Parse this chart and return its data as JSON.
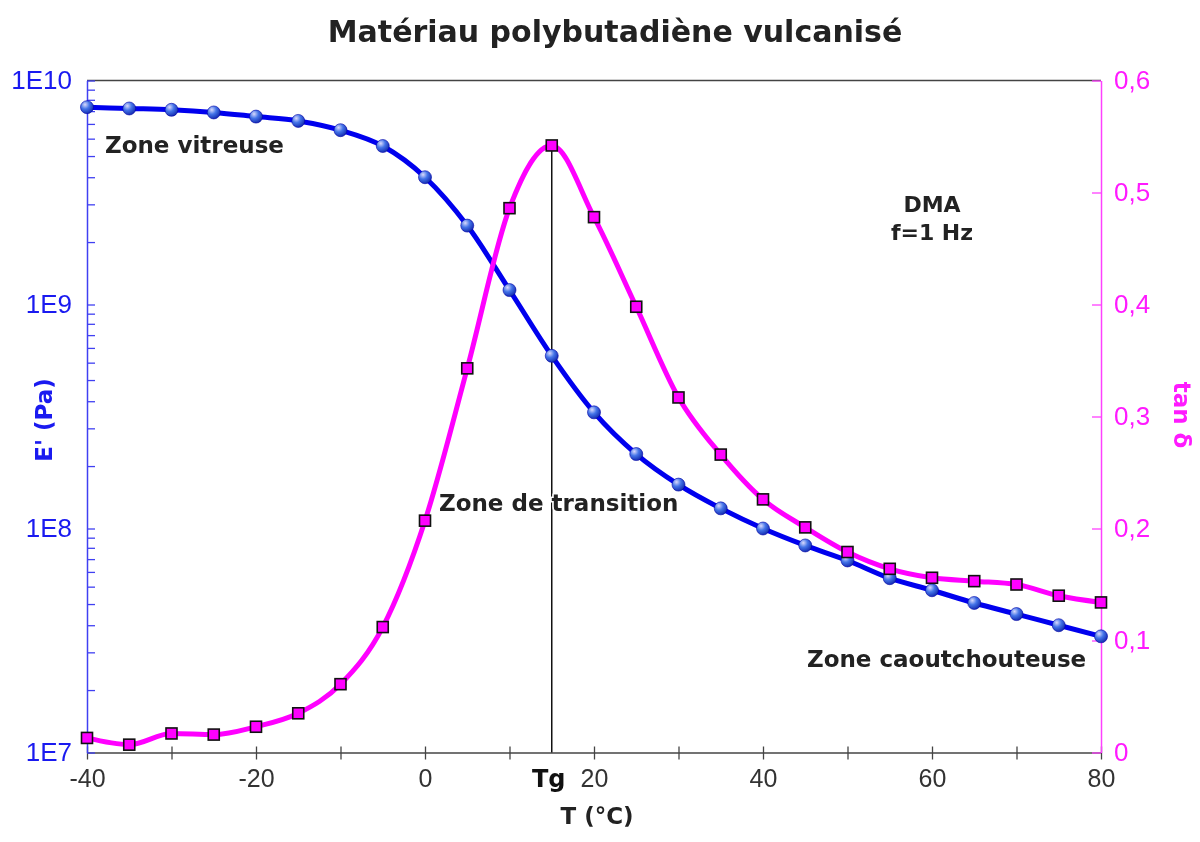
{
  "chart_data": {
    "type": "line",
    "title": "Matériau polybutadiène vulcanisé",
    "xlabel": "T (°C)",
    "ylabel": "E' (Pa)",
    "y2label": "tan δ",
    "x": [
      -40,
      -35,
      -30,
      -25,
      -20,
      -15,
      -10,
      -5,
      0,
      5,
      10,
      15,
      20,
      25,
      30,
      35,
      40,
      45,
      50,
      55,
      60,
      65,
      70,
      75,
      80
    ],
    "xlim": [
      -40,
      80
    ],
    "xticks": [
      -40,
      {
        "value": -30,
        "label": null
      },
      -20,
      {
        "value": -10,
        "label": null
      },
      0,
      {
        "value": 10,
        "label": null
      },
      20,
      {
        "value": 30,
        "label": null
      },
      40,
      {
        "value": 50,
        "label": null
      },
      60,
      {
        "value": 70,
        "label": null
      },
      80
    ],
    "ylim": [
      10000000,
      10000000000
    ],
    "log": "y",
    "yticks": [
      {
        "value": 10000000,
        "label": "1E7"
      },
      {
        "value": 19000000,
        "label": null
      },
      {
        "value": 28000000,
        "label": null
      },
      {
        "value": 37000000,
        "label": null
      },
      {
        "value": 46000000,
        "label": null
      },
      {
        "value": 55000000,
        "label": null
      },
      {
        "value": 64000000,
        "label": null
      },
      {
        "value": 73000000,
        "label": null
      },
      {
        "value": 82000000,
        "label": null
      },
      {
        "value": 91000000,
        "label": null
      },
      {
        "value": 100000000,
        "label": "1E8"
      },
      {
        "value": 190000000,
        "label": null
      },
      {
        "value": 280000000,
        "label": null
      },
      {
        "value": 370000000,
        "label": null
      },
      {
        "value": 460000000,
        "label": null
      },
      {
        "value": 550000000,
        "label": null
      },
      {
        "value": 640000000,
        "label": null
      },
      {
        "value": 730000000,
        "label": null
      },
      {
        "value": 820000000,
        "label": null
      },
      {
        "value": 910000000,
        "label": null
      },
      {
        "value": 1000000000,
        "label": "1E9"
      },
      {
        "value": 1900000000,
        "label": null
      },
      {
        "value": 2800000000,
        "label": null
      },
      {
        "value": 3700000000,
        "label": null
      },
      {
        "value": 4600000000,
        "label": null
      },
      {
        "value": 5500000000,
        "label": null
      },
      {
        "value": 6400000000,
        "label": null
      },
      {
        "value": 7300000000,
        "label": null
      },
      {
        "value": 8200000000,
        "label": null
      },
      {
        "value": 9100000000,
        "label": null
      },
      {
        "value": 10000000000,
        "label": "1E10"
      }
    ],
    "y2lim": [
      0,
      0.6
    ],
    "y2ticks": [
      0,
      {
        "value": 0.1,
        "label": "0,1"
      },
      {
        "value": 0.2,
        "label": "0,2"
      },
      {
        "value": 0.3,
        "label": "0,3"
      },
      {
        "value": 0.4,
        "label": "0,4"
      },
      {
        "value": 0.5,
        "label": "0,5"
      },
      {
        "value": 0.6,
        "label": "0,6"
      }
    ],
    "series": [
      {
        "color": "#0000ee",
        "marker": "circle",
        "values": [
          7600000000,
          7500000000,
          7400000000,
          7200000000,
          6900000000,
          6600000000,
          6000000000,
          5100000000,
          3700000000,
          2250000000,
          1160000000,
          590000000,
          330000000,
          215000000,
          157000000,
          123000000,
          100000000,
          84000000,
          72000000,
          60000000,
          53000000,
          46500000,
          41500000,
          37000000,
          33000000
        ]
      },
      {
        "color": "#ff00ff",
        "marker": "square",
        "axis": "y2",
        "values": [
          0.013,
          0.007,
          0.017,
          0.016,
          0.023,
          0.035,
          0.061,
          0.112,
          0.207,
          0.343,
          0.486,
          0.542,
          0.478,
          0.398,
          0.317,
          0.266,
          0.226,
          0.201,
          0.179,
          0.164,
          0.156,
          0.153,
          0.15,
          0.14,
          0.134
        ]
      }
    ],
    "ref_lines": [
      {
        "axis": "x",
        "value": 15,
        "label": "Tg",
        "color": "#111111"
      }
    ],
    "annotations": [
      "Zone vitreuse",
      "Zone de transition",
      "Zone caoutchouteuse",
      "DMA",
      "f=1 Hz"
    ]
  }
}
